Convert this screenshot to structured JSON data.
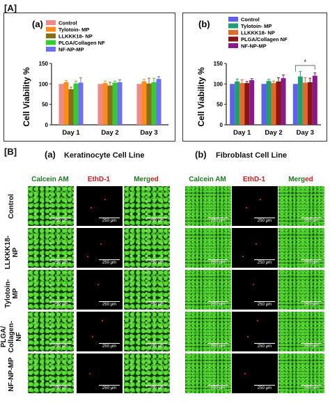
{
  "figure": {
    "panel_a_tag": "[A]",
    "panel_b_tag": "[B]"
  },
  "chart_data": [
    {
      "type": "bar",
      "panel": "(a)",
      "ylabel": "Cell Viability %",
      "ylim": [
        0,
        150
      ],
      "yticks": [
        "0",
        "50",
        "100",
        "150"
      ],
      "categories": [
        "Day 1",
        "Day 2",
        "Day 3"
      ],
      "legend_position": "top-left",
      "series": [
        {
          "name": "Control",
          "color": "#f08a8a",
          "values": [
            100,
            100,
            100
          ],
          "errors": [
            0,
            0,
            0
          ]
        },
        {
          "name": "Tylotoin- MP",
          "color": "#ff8c1a",
          "values": [
            104,
            102,
            106
          ],
          "errors": [
            4,
            5,
            5
          ]
        },
        {
          "name": "LLKKK18- NP",
          "color": "#8a6d1a",
          "values": [
            87,
            96,
            101
          ],
          "errors": [
            5,
            8,
            13
          ]
        },
        {
          "name": "PLGA/Collagen NF",
          "color": "#33cc33",
          "values": [
            101,
            103,
            104
          ],
          "errors": [
            6,
            4,
            10
          ]
        },
        {
          "name": "NF-NP-MP",
          "color": "#6f6ff2",
          "values": [
            103,
            104,
            112
          ],
          "errors": [
            12,
            6,
            6
          ]
        }
      ]
    },
    {
      "type": "bar",
      "panel": "(b)",
      "ylabel": "Cell Viability %",
      "ylim": [
        0,
        150
      ],
      "yticks": [
        "0",
        "50",
        "100",
        "150"
      ],
      "categories": [
        "Day 1",
        "Day 2",
        "Day 3"
      ],
      "legend_position": "top-left",
      "significance": {
        "label": "*",
        "category": "Day 3",
        "from_series": 0,
        "to_series": 4
      },
      "series": [
        {
          "name": "Control",
          "color": "#5f5ff0",
          "values": [
            100,
            100,
            100
          ],
          "errors": [
            0,
            0,
            0
          ]
        },
        {
          "name": "Tylotoin- MP",
          "color": "#1f9e6e",
          "values": [
            106,
            107,
            118
          ],
          "errors": [
            6,
            4,
            12
          ]
        },
        {
          "name": "LLKKK18- NP",
          "color": "#e06a2a",
          "values": [
            102,
            102,
            103
          ],
          "errors": [
            8,
            5,
            12
          ]
        },
        {
          "name": "PLGA/Collagen NF",
          "color": "#8a1515",
          "values": [
            102,
            106,
            104
          ],
          "errors": [
            4,
            9,
            10
          ]
        },
        {
          "name": "NF-NP-MP",
          "color": "#8a1a8a",
          "values": [
            109,
            114,
            120
          ],
          "errors": [
            4,
            8,
            7
          ]
        }
      ]
    }
  ],
  "micrographs": {
    "sub_a": {
      "tag": "(a)",
      "title": "Keratinocyte Cell Line"
    },
    "sub_b": {
      "tag": "(b)",
      "title": "Fibroblast Cell Line"
    },
    "columns": {
      "calcein": "Calcein AM",
      "ethd": "EthD-1",
      "merged_green": "Merg",
      "merged_red": "ed"
    },
    "rows": [
      "Control",
      "LLKKK18-\nNP",
      "Tylotoin-\nMP",
      "PLGA/\nCollagen-\nNF",
      "NF-NP-MP"
    ],
    "scale_label": "250 μm"
  }
}
